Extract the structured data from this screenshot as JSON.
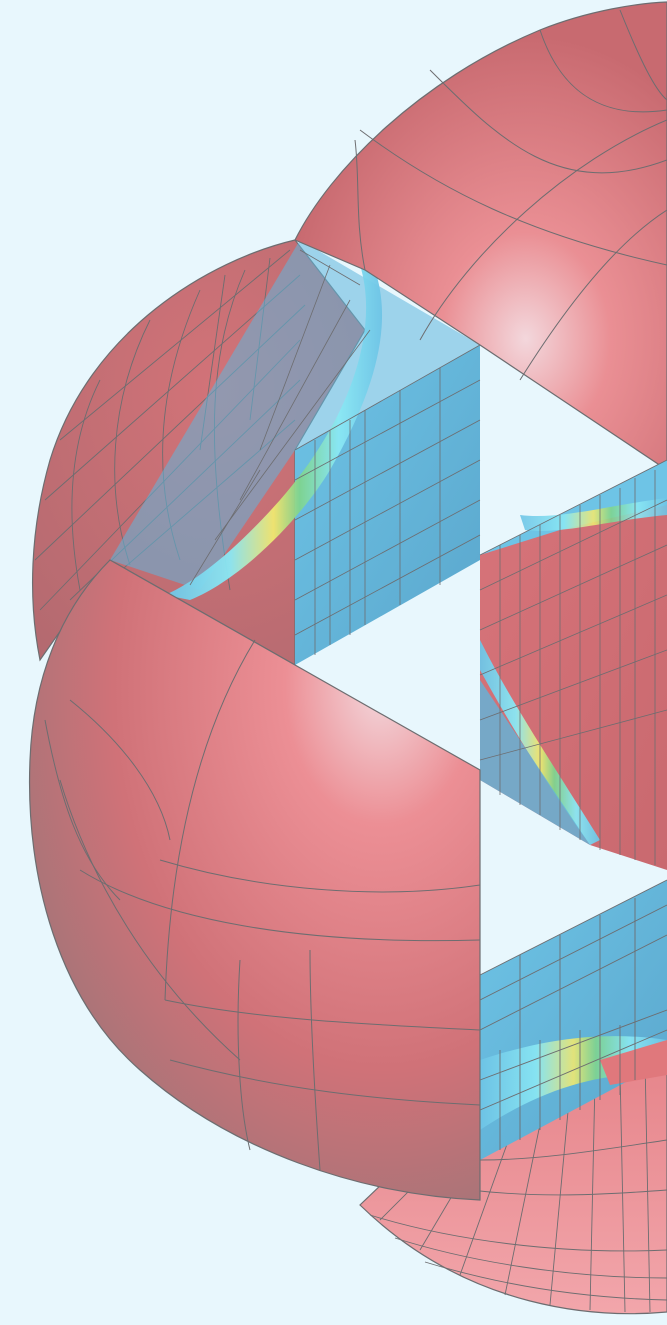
{
  "image": {
    "background_color": "#e8f7fd",
    "surface_color": "#e0787c",
    "surface_highlight_color": "#f3d7dc",
    "surface_shadow_color": "#a77478",
    "mesh_line_color": "#6d6d70",
    "section_field_colors": {
      "low": "#5fb6dc",
      "mid_low": "#8ae8f4",
      "mid": "#7fd48e",
      "mid_high": "#f0e870",
      "high": "#e0787c"
    },
    "objects": [
      "upper-sphere-shell",
      "left-sphere-shell",
      "lower-left-sphere-shell",
      "lower-sphere-shell",
      "upper-cutaway-section",
      "middle-cube-block",
      "lower-cutaway-section"
    ]
  }
}
